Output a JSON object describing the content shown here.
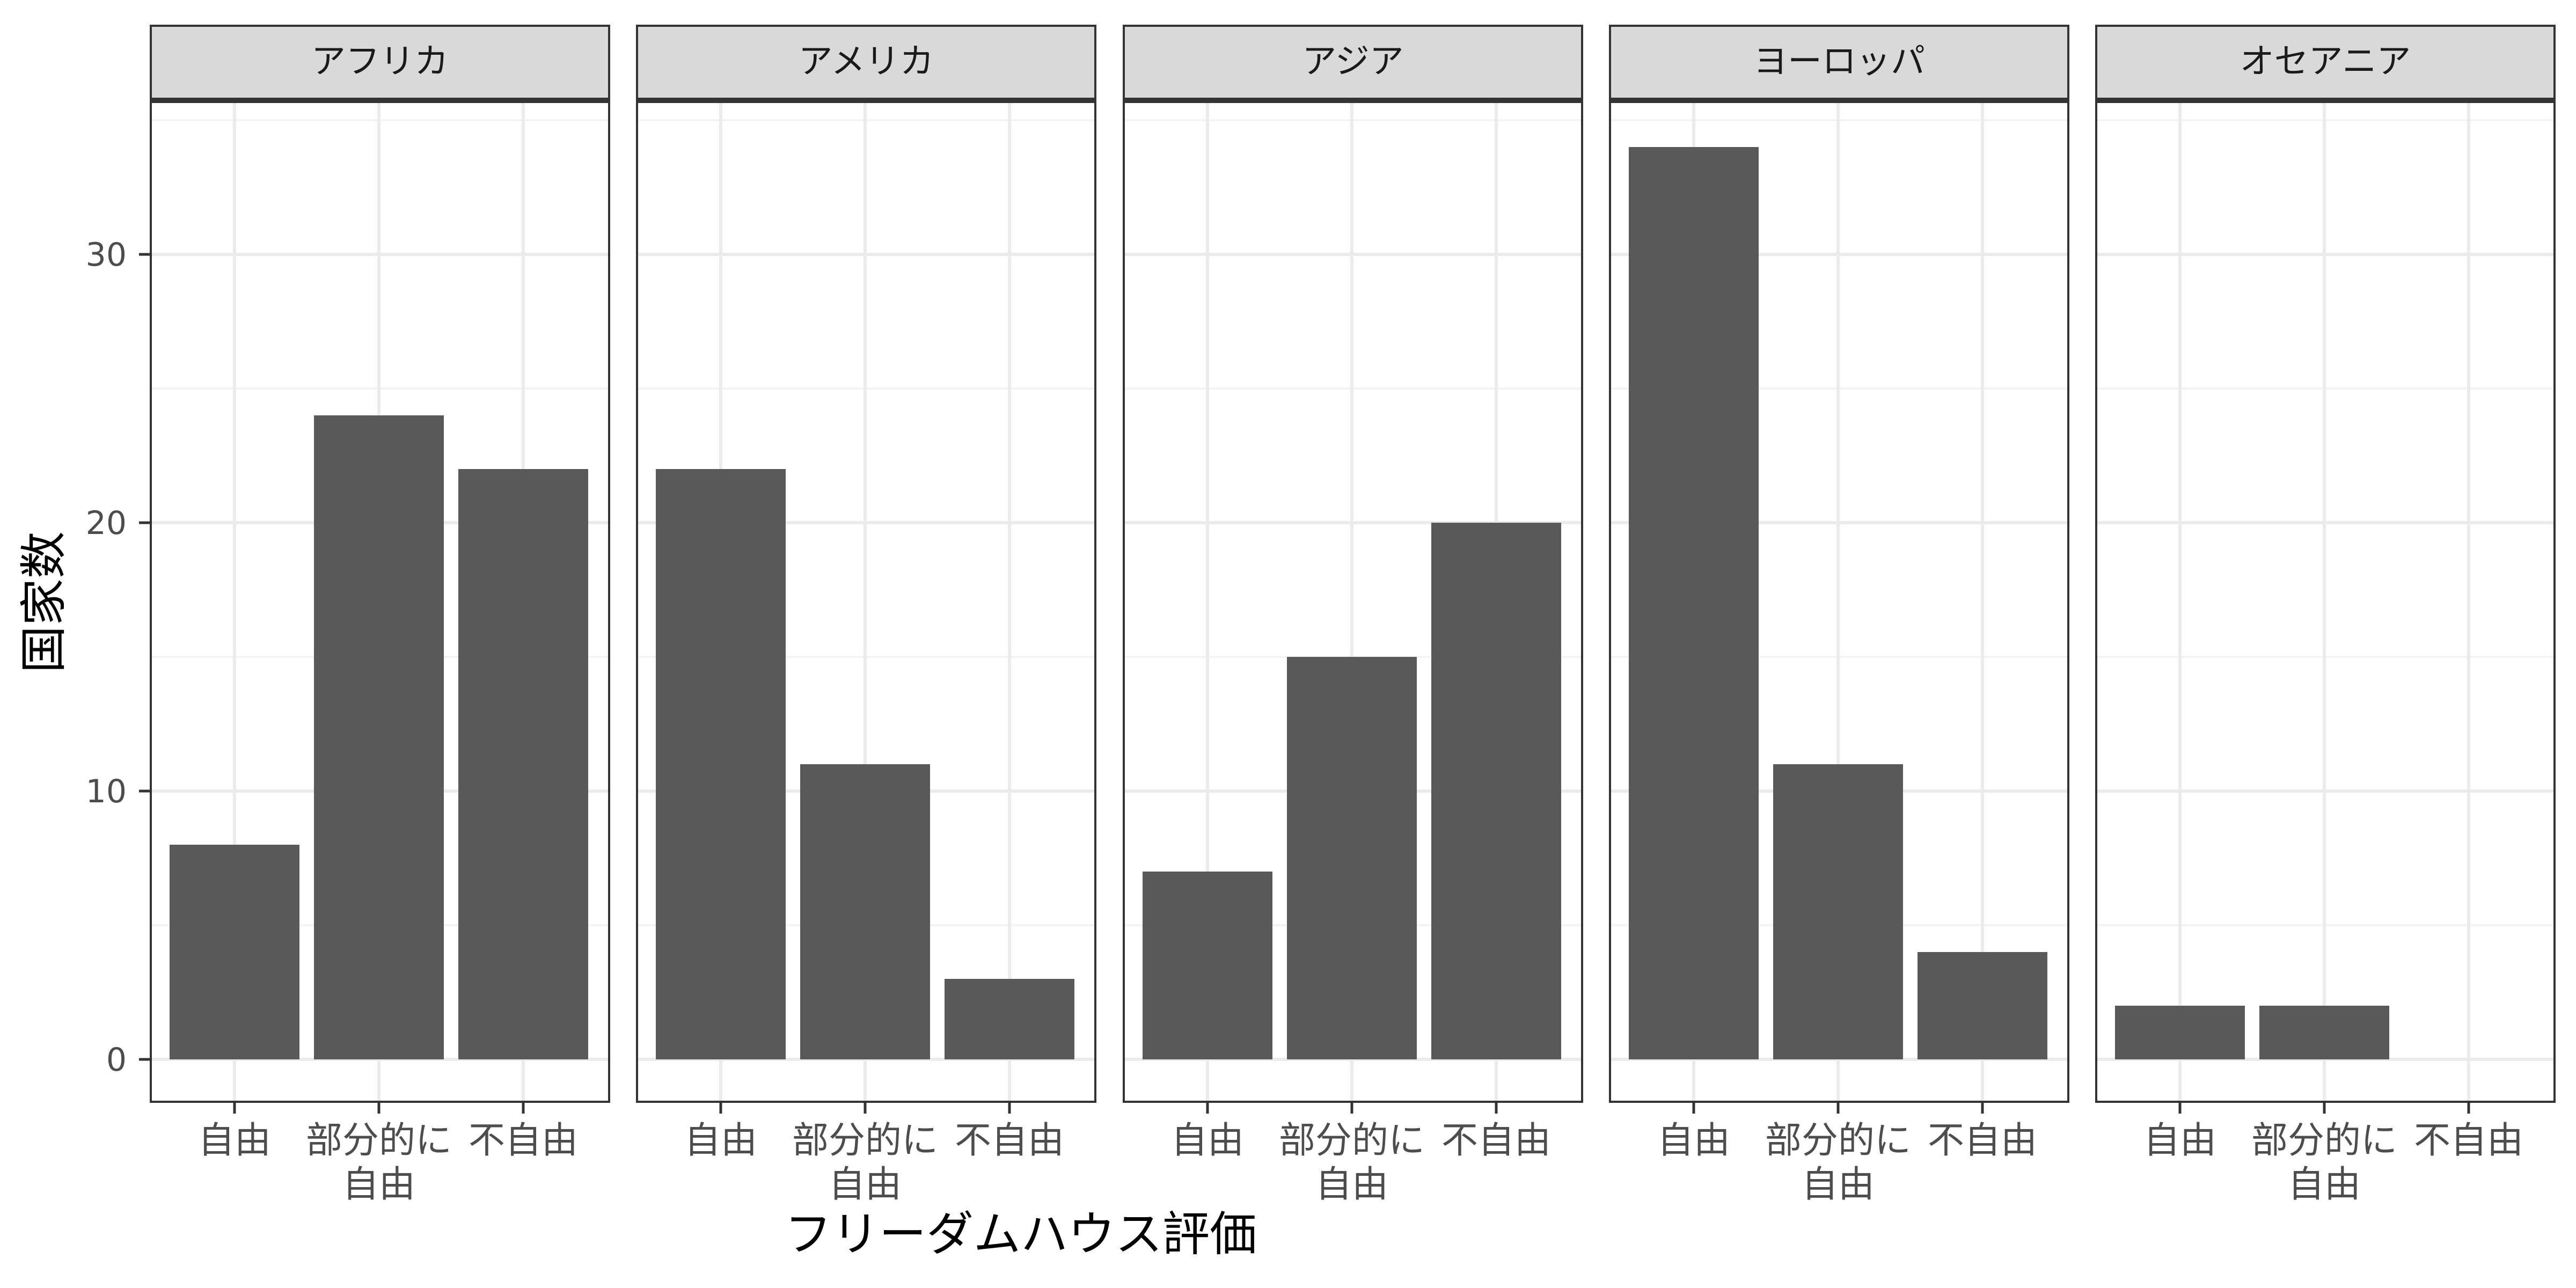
{
  "chart_data": {
    "type": "bar",
    "facets": [
      "アフリカ",
      "アメリカ",
      "アジア",
      "ヨーロッパ",
      "オセアニア"
    ],
    "categories": [
      "自由",
      "部分的に\n自由",
      "不自由"
    ],
    "values": [
      [
        8,
        24,
        22
      ],
      [
        22,
        11,
        3
      ],
      [
        7,
        15,
        20
      ],
      [
        34,
        11,
        4
      ],
      [
        2,
        2,
        0
      ]
    ],
    "xlabel": "フリーダムハウス評価",
    "ylabel": "国家数",
    "yticks": [
      0,
      10,
      20,
      30
    ],
    "ylim": [
      -1.7,
      35.7
    ],
    "grid": true,
    "colors": {
      "bar": "#595959",
      "strip_fill": "#d9d9d9",
      "panel_border": "#333333",
      "grid_major": "#ebebeb",
      "grid_minor": "#f3f3f3"
    }
  }
}
